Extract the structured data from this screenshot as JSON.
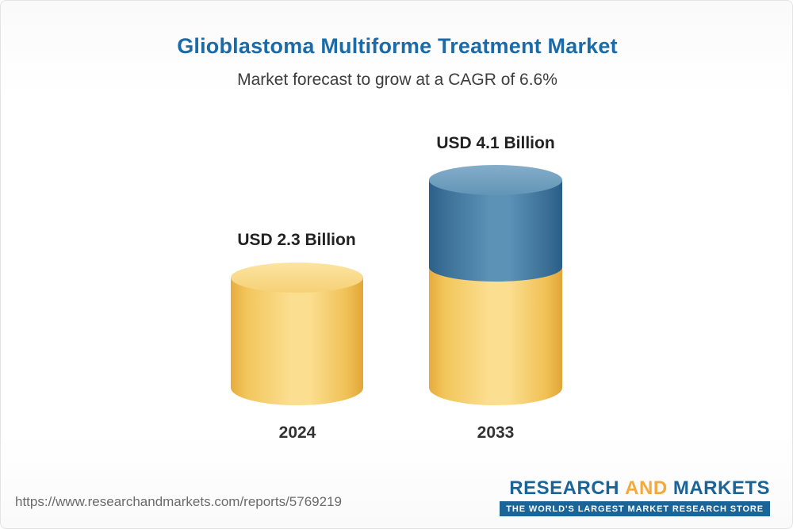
{
  "chart_data": {
    "type": "bar",
    "title": "Glioblastoma Multiforme Treatment Market",
    "subtitle": "Market forecast to grow at a CAGR of 6.6%",
    "cagr": "6.6%",
    "unit": "USD Billion",
    "categories": [
      "2024",
      "2033"
    ],
    "values": [
      2.3,
      4.1
    ],
    "value_labels": [
      "USD 2.3 Billion",
      "USD 4.1 Billion"
    ],
    "legend_position": "none",
    "grid": false,
    "colors": {
      "base_segment": "#f6c95f",
      "growth_segment": "#4a80a8",
      "title_text": "#1a6ba8",
      "label_text": "#222222"
    }
  },
  "footer": {
    "url": "https://www.researchandmarkets.com/reports/5769219",
    "logo": {
      "word_research": "RESEARCH",
      "word_and": "AND",
      "word_markets": "MARKETS",
      "tagline": "THE WORLD'S LARGEST MARKET RESEARCH STORE"
    }
  }
}
